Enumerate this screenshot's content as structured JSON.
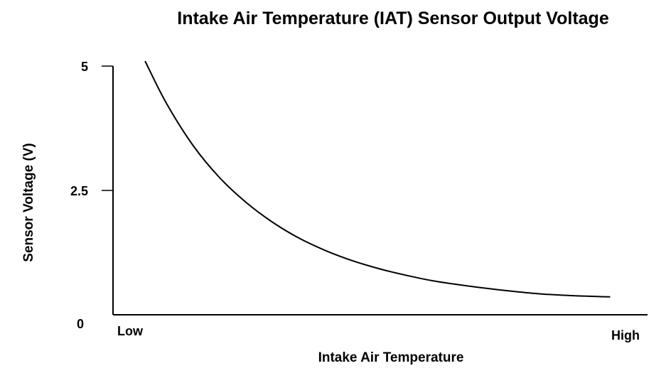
{
  "chart_data": {
    "type": "line",
    "title": "Intake Air Temperature (IAT) Sensor Output Voltage",
    "xlabel": "Intake Air Temperature",
    "ylabel": "Sensor Voltage (V)",
    "x_tick_labels": {
      "start": "Low",
      "end": "High"
    },
    "y_ticks": [
      {
        "value": 5,
        "label": "5"
      },
      {
        "value": 2.5,
        "label": "2.5"
      },
      {
        "value": 0,
        "label": "0"
      }
    ],
    "ylim": [
      0,
      5.2
    ],
    "xlim": [
      0,
      1
    ],
    "grid": false,
    "series": [
      {
        "x": [
          0.06,
          0.1,
          0.15,
          0.2,
          0.25,
          0.3,
          0.35,
          0.4,
          0.45,
          0.5,
          0.55,
          0.6,
          0.65,
          0.7,
          0.75,
          0.8,
          0.85,
          0.9,
          0.93
        ],
        "y": [
          5.1,
          4.25,
          3.4,
          2.75,
          2.25,
          1.85,
          1.53,
          1.28,
          1.08,
          0.92,
          0.79,
          0.68,
          0.6,
          0.53,
          0.47,
          0.42,
          0.39,
          0.37,
          0.36
        ]
      }
    ],
    "colors": {
      "line": "#000000",
      "axis": "#000000",
      "background": "#ffffff"
    }
  }
}
